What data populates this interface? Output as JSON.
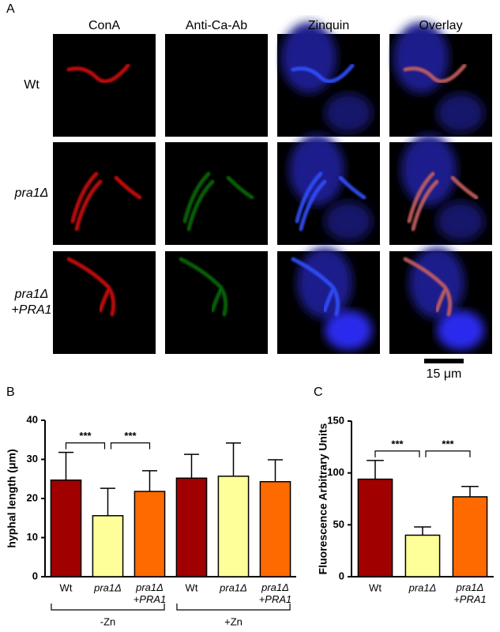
{
  "figure": {
    "panel_a": {
      "label": "A",
      "columns": [
        "ConA",
        "Anti-Ca-Ab",
        "Zinquin",
        "Overlay"
      ],
      "rows": [
        [
          "Wt"
        ],
        [
          "pra1Δ"
        ],
        [
          "pra1Δ",
          "+PRA1"
        ]
      ],
      "scale_bar": "15 μm"
    }
  },
  "chart_data": [
    {
      "type": "bar",
      "panel_label": "B",
      "y_label": "hyphal length (μm)",
      "categories": [
        "Wt",
        "pra1Δ",
        "pra1Δ +PRA1",
        "Wt",
        "pra1Δ",
        "pra1Δ +PRA1"
      ],
      "values": [
        24.7,
        15.6,
        21.8,
        25.2,
        25.7,
        24.3
      ],
      "errors": [
        7.1,
        7.0,
        5.3,
        6.1,
        8.5,
        5.6
      ],
      "colors": [
        "#a00000",
        "#ffff99",
        "#ff6a00",
        "#a00000",
        "#ffff99",
        "#ff6a00"
      ],
      "groups": [
        {
          "label": "-Zn",
          "span": [
            0,
            2
          ]
        },
        {
          "label": "+Zn",
          "span": [
            3,
            5
          ]
        }
      ],
      "significance": [
        {
          "label": "***",
          "pair": [
            0,
            1
          ]
        },
        {
          "label": "***",
          "pair": [
            1,
            2
          ]
        }
      ],
      "ylim": [
        0,
        40
      ],
      "yticks": [
        0,
        10,
        20,
        30,
        40
      ]
    },
    {
      "type": "bar",
      "panel_label": "C",
      "y_label": "Fluorescence Arbitrary Units",
      "categories": [
        "Wt",
        "pra1Δ",
        "pra1Δ +PRA1"
      ],
      "values": [
        94,
        40,
        77
      ],
      "errors": [
        18,
        8,
        10
      ],
      "colors": [
        "#a00000",
        "#ffff99",
        "#ff6a00"
      ],
      "significance": [
        {
          "label": "***",
          "pair": [
            0,
            1
          ]
        },
        {
          "label": "***",
          "pair": [
            1,
            2
          ]
        }
      ],
      "ylim": [
        0,
        150
      ],
      "yticks": [
        0,
        50,
        100,
        150
      ]
    }
  ]
}
